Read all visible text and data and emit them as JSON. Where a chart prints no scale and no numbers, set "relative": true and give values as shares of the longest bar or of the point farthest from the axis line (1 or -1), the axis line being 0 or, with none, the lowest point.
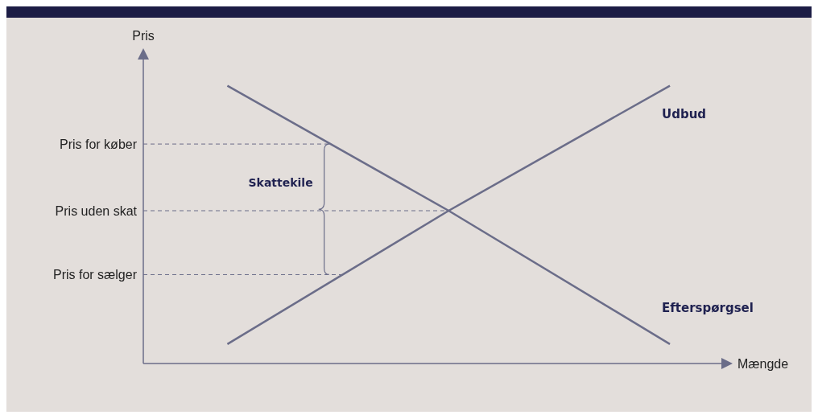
{
  "chart_data": {
    "type": "line",
    "xlabel": "Mængde",
    "ylabel": "Pris",
    "relative": true,
    "categories": [
      null,
      null,
      null
    ],
    "series": [
      {
        "name": "Udbud",
        "color": "#6b6d89",
        "values": [
          0.07,
          0.55,
          1
        ]
      },
      {
        "name": "Efterspørgsel",
        "color": "#6b6d89",
        "values": [
          1,
          0.55,
          0.07
        ]
      }
    ],
    "ref_lines": [
      {
        "axis": "y",
        "value": 0.79,
        "label": "Pris for køber",
        "color": "#6b6d89",
        "line_style": "dashed"
      },
      {
        "axis": "y",
        "value": 0.55,
        "label": "Pris uden skat",
        "color": "#6b6d89",
        "line_style": "dashed"
      },
      {
        "axis": "y",
        "value": 0.32,
        "label": "Pris for sælger",
        "color": "#6b6d89",
        "line_style": "dashed"
      }
    ],
    "annotations": [
      "Skattekile"
    ],
    "marker": "none",
    "line_style": "solid",
    "grid": false
  }
}
